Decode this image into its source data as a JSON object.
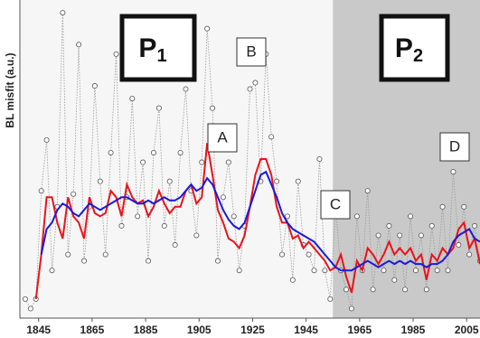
{
  "chart_data": {
    "type": "line",
    "y_label": "BL misfit (a.u.)",
    "x": [
      1840,
      1842,
      1844,
      1846,
      1848,
      1850,
      1852,
      1854,
      1856,
      1858,
      1860,
      1862,
      1864,
      1866,
      1868,
      1870,
      1872,
      1874,
      1876,
      1878,
      1880,
      1882,
      1884,
      1886,
      1888,
      1890,
      1892,
      1894,
      1896,
      1898,
      1900,
      1902,
      1904,
      1906,
      1908,
      1910,
      1912,
      1914,
      1916,
      1918,
      1920,
      1922,
      1924,
      1926,
      1928,
      1930,
      1932,
      1934,
      1936,
      1938,
      1940,
      1942,
      1944,
      1946,
      1948,
      1950,
      1952,
      1954,
      1956,
      1958,
      1960,
      1962,
      1964,
      1966,
      1968,
      1970,
      1972,
      1974,
      1976,
      1978,
      1980,
      1982,
      1984,
      1986,
      1988,
      1990,
      1992,
      1994,
      1996,
      1998,
      2000,
      2002,
      2004,
      2006,
      2008,
      2010
    ],
    "series": [
      {
        "color": "#999999",
        "markers": true,
        "values": [
          0.06,
          0.03,
          0.06,
          0.4,
          0.56,
          0.15,
          0.35,
          0.96,
          0.2,
          0.39,
          0.86,
          0.18,
          0.35,
          0.73,
          0.43,
          0.2,
          0.52,
          0.83,
          0.29,
          0.38,
          0.69,
          0.32,
          0.49,
          0.18,
          0.52,
          0.66,
          0.29,
          0.43,
          0.23,
          0.52,
          0.72,
          0.4,
          0.26,
          0.49,
          0.91,
          0.66,
          0.18,
          0.38,
          0.49,
          0.32,
          0.15,
          0.29,
          0.72,
          0.74,
          0.43,
          0.83,
          0.57,
          0.43,
          0.2,
          0.32,
          0.12,
          0.43,
          0.23,
          0.2,
          0.15,
          0.5,
          0.15,
          0.06,
          0.35,
          0.15,
          0.09,
          0.03,
          0.32,
          0.15,
          0.4,
          0.09,
          0.26,
          0.15,
          0.29,
          0.12,
          0.26,
          0.09,
          0.32,
          0.15,
          0.26,
          0.09,
          0.29,
          0.15,
          0.35,
          0.15,
          0.46,
          0.23,
          0.35,
          0.2,
          0.29,
          0.18
        ]
      },
      {
        "color": "#e8141b",
        "markers": false,
        "values": [
          null,
          null,
          0.06,
          0.2,
          0.38,
          0.38,
          0.3,
          0.25,
          0.38,
          0.32,
          0.3,
          0.25,
          0.38,
          0.33,
          0.32,
          0.33,
          0.4,
          0.38,
          0.32,
          0.42,
          0.38,
          0.36,
          0.37,
          0.32,
          0.35,
          0.4,
          0.36,
          0.33,
          0.35,
          0.35,
          0.4,
          0.42,
          0.36,
          0.38,
          0.55,
          0.45,
          0.34,
          0.3,
          0.25,
          0.24,
          0.22,
          0.26,
          0.35,
          0.45,
          0.5,
          0.5,
          0.45,
          0.35,
          0.3,
          0.3,
          0.25,
          0.26,
          0.22,
          0.24,
          0.22,
          0.2,
          0.18,
          0.15,
          0.16,
          0.2,
          0.13,
          0.08,
          0.18,
          0.15,
          0.22,
          0.2,
          0.17,
          0.2,
          0.24,
          0.2,
          0.22,
          0.2,
          0.22,
          0.18,
          0.2,
          0.12,
          0.2,
          0.18,
          0.22,
          0.2,
          0.22,
          0.28,
          0.3,
          0.22,
          0.25,
          0.17
        ]
      },
      {
        "color": "#1a1adc",
        "markers": false,
        "values": [
          null,
          null,
          null,
          0.2,
          0.28,
          0.3,
          0.34,
          0.36,
          0.35,
          0.33,
          0.32,
          0.34,
          0.36,
          0.35,
          0.34,
          0.35,
          0.36,
          0.37,
          0.38,
          0.38,
          0.37,
          0.36,
          0.36,
          0.37,
          0.36,
          0.37,
          0.38,
          0.37,
          0.37,
          0.38,
          0.4,
          0.42,
          0.4,
          0.41,
          0.44,
          0.42,
          0.38,
          0.34,
          0.31,
          0.29,
          0.28,
          0.3,
          0.35,
          0.4,
          0.45,
          0.46,
          0.42,
          0.38,
          0.33,
          0.3,
          0.28,
          0.27,
          0.26,
          0.25,
          0.24,
          0.22,
          0.2,
          0.18,
          0.16,
          0.15,
          0.15,
          0.15,
          0.16,
          0.17,
          0.18,
          0.17,
          0.16,
          0.17,
          0.18,
          0.17,
          0.18,
          0.17,
          0.18,
          0.17,
          0.17,
          0.16,
          0.17,
          0.17,
          0.18,
          0.2,
          0.24,
          0.26,
          0.27,
          0.28,
          0.25,
          0.24
        ]
      }
    ],
    "xlim": [
      1838,
      2010
    ],
    "ylim": [
      0,
      1
    ],
    "xticks": [
      1845,
      1865,
      1885,
      1905,
      1925,
      1945,
      1965,
      1985,
      2005
    ],
    "shaded_from": 1955,
    "periods": [
      {
        "label": "P",
        "subscript": "1"
      },
      {
        "label": "P",
        "subscript": "2"
      }
    ],
    "annotations": [
      "A",
      "B",
      "C",
      "D"
    ]
  }
}
